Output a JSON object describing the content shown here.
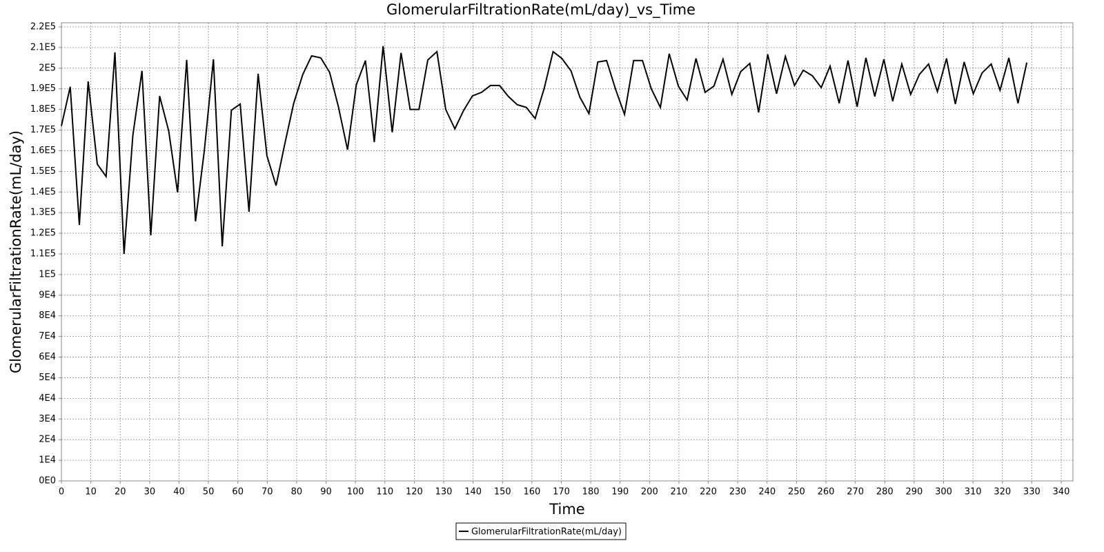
{
  "chart_data": {
    "type": "line",
    "title": "GlomerularFiltrationRate(mL/day)_vs_Time",
    "x_label": "Time",
    "y_label": "GlomerularFiltrationRate(mL/day)",
    "x": [
      0,
      3,
      6.1,
      9.1,
      12.2,
      15.2,
      18.2,
      21.3,
      24.3,
      27.4,
      30.4,
      33.4,
      36.5,
      39.5,
      42.6,
      45.6,
      48.6,
      51.7,
      54.7,
      57.8,
      60.8,
      63.8,
      66.9,
      69.9,
      73,
      76,
      79,
      82.1,
      85.1,
      88.2,
      91.2,
      94.2,
      97.3,
      100.3,
      103.4,
      106.4,
      109.4,
      112.5,
      115.5,
      118.6,
      121.6,
      124.6,
      127.7,
      130.7,
      133.8,
      136.8,
      139.8,
      142.9,
      145.9,
      149,
      152,
      155,
      158.1,
      161.1,
      164.2,
      167.2,
      170.2,
      173.3,
      176.3,
      179.4,
      182.4,
      185.4,
      188.5,
      191.5,
      194.6,
      197.6,
      200.6,
      203.7,
      206.7,
      209.8,
      212.8,
      215.8,
      218.9,
      221.9,
      225,
      228,
      231,
      234.1,
      237.1,
      240.2,
      243.2,
      246.2,
      249.3,
      252.3,
      255.4,
      258.4,
      261.4,
      264.5,
      267.5,
      270.6,
      273.6,
      276.6,
      279.7,
      282.7,
      285.8,
      288.8,
      291.8,
      294.9,
      297.9,
      301,
      304,
      307,
      310.1,
      313.1,
      316.2,
      319.2,
      322.2,
      325.3,
      328.3
    ],
    "series": [
      {
        "name": "GlomerularFiltrationRate(mL/day)",
        "color": "#000000",
        "values": [
          172000,
          191000,
          124000,
          193600,
          153500,
          147500,
          207700,
          110000,
          167500,
          198700,
          119000,
          186500,
          169500,
          139800,
          204000,
          125800,
          160000,
          204300,
          113700,
          179600,
          182600,
          130400,
          197300,
          157500,
          143100,
          163500,
          183000,
          197000,
          206000,
          205000,
          198000,
          181300,
          160500,
          192000,
          203700,
          164200,
          210700,
          168900,
          207400,
          180000,
          180000,
          204000,
          208000,
          180000,
          170600,
          179600,
          186600,
          188300,
          191600,
          191600,
          186300,
          182300,
          181000,
          175600,
          190300,
          208000,
          204700,
          198700,
          186000,
          178000,
          203000,
          203700,
          189600,
          177600,
          203700,
          203700,
          190000,
          181000,
          207000,
          191300,
          184600,
          204700,
          188300,
          191300,
          204300,
          187300,
          198300,
          202300,
          178600,
          206700,
          187600,
          205700,
          191600,
          199000,
          196300,
          190600,
          201000,
          183000,
          203700,
          181300,
          205000,
          186300,
          204300,
          184000,
          202000,
          187300,
          197000,
          202000,
          188600,
          204700,
          182600,
          203000,
          187600,
          197700,
          202000,
          189300,
          205000,
          183000,
          202700
        ]
      }
    ],
    "xlim": [
      0,
      344
    ],
    "ylim": [
      0,
      222000
    ],
    "xticks": [
      0,
      10,
      20,
      30,
      40,
      50,
      60,
      70,
      80,
      90,
      100,
      110,
      120,
      130,
      140,
      150,
      160,
      170,
      180,
      190,
      200,
      210,
      220,
      230,
      240,
      250,
      260,
      270,
      280,
      290,
      300,
      310,
      320,
      330,
      340
    ],
    "yticks": [
      {
        "value": 0,
        "label": "0E0"
      },
      {
        "value": 10000,
        "label": "1E4"
      },
      {
        "value": 20000,
        "label": "2E4"
      },
      {
        "value": 30000,
        "label": "3E4"
      },
      {
        "value": 40000,
        "label": "4E4"
      },
      {
        "value": 50000,
        "label": "5E4"
      },
      {
        "value": 60000,
        "label": "6E4"
      },
      {
        "value": 70000,
        "label": "7E4"
      },
      {
        "value": 80000,
        "label": "8E4"
      },
      {
        "value": 90000,
        "label": "9E4"
      },
      {
        "value": 100000,
        "label": "1E5"
      },
      {
        "value": 110000,
        "label": "1.1E5"
      },
      {
        "value": 120000,
        "label": "1.2E5"
      },
      {
        "value": 130000,
        "label": "1.3E5"
      },
      {
        "value": 140000,
        "label": "1.4E5"
      },
      {
        "value": 150000,
        "label": "1.5E5"
      },
      {
        "value": 160000,
        "label": "1.6E5"
      },
      {
        "value": 170000,
        "label": "1.7E5"
      },
      {
        "value": 180000,
        "label": "1.8E5"
      },
      {
        "value": 190000,
        "label": "1.9E5"
      },
      {
        "value": 200000,
        "label": "2E5"
      },
      {
        "value": 210000,
        "label": "2.1E5"
      },
      {
        "value": 220000,
        "label": "2.2E5"
      }
    ],
    "grid": true,
    "legend": "bottom"
  }
}
